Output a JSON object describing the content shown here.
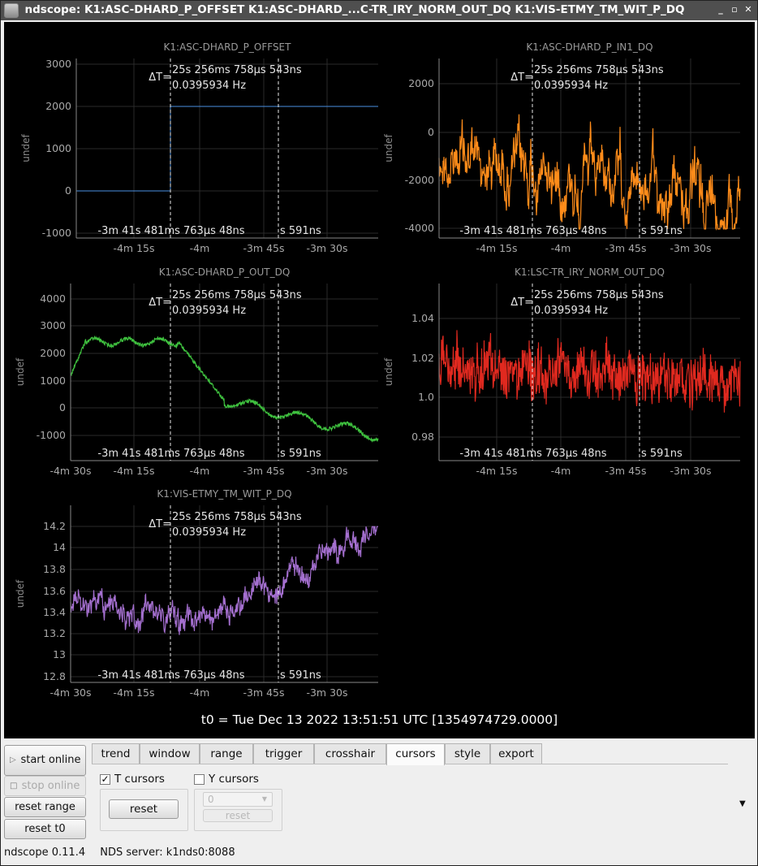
{
  "window": {
    "title": "ndscope: K1:ASC-DHARD_P_OFFSET K1:ASC-DHARD_...C-TR_IRY_NORM_OUT_DQ K1:VIS-ETMY_TM_WIT_P_DQ",
    "controls": {
      "minimize": "_",
      "maximize": "▫",
      "close": "✕"
    }
  },
  "cursor_readout": {
    "delta_t_label": "ΔT=",
    "delta_t_value": "25s 256ms 758µs 543ns",
    "frequency": "0.0395934 Hz",
    "cursor1_time": "-3m 41s 481ms 763µs 48ns",
    "cursor2_time": "s 591ns"
  },
  "colors": {
    "background": "#000000",
    "axis": "#888888",
    "grid": "#2a2a2a",
    "offset_trace": "#4a90e2",
    "in1_trace": "#ff8c1a",
    "out_trace": "#3fc23f",
    "norm_trace": "#e0291f",
    "wit_trace": "#a46fcf"
  },
  "plots": [
    {
      "channel": "K1:ASC-DHARD_P_OFFSET",
      "ylabel": "undef",
      "yticks": [
        "3000",
        "2000",
        "1000",
        "0",
        "-1000"
      ],
      "xticks": [
        "-4m 15s",
        "-4m",
        "-3m 45s",
        "-3m 30s"
      ],
      "color": "#4a90e2"
    },
    {
      "channel": "K1:ASC-DHARD_P_IN1_DQ",
      "ylabel": "undef",
      "yticks": [
        "2000",
        "0",
        "-2000",
        "-4000"
      ],
      "xticks": [
        "-4m 15s",
        "-4m",
        "-3m 45s",
        "-3m 30s"
      ],
      "color": "#ff8c1a"
    },
    {
      "channel": "K1:ASC-DHARD_P_OUT_DQ",
      "ylabel": "undef",
      "yticks": [
        "4000",
        "3000",
        "2000",
        "1000",
        "0",
        "-1000"
      ],
      "xticks": [
        "-4m 30s",
        "-4m 15s",
        "-4m",
        "-3m 45s",
        "-3m 30s"
      ],
      "color": "#3fc23f"
    },
    {
      "channel": "K1:LSC-TR_IRY_NORM_OUT_DQ",
      "ylabel": "undef",
      "yticks": [
        "1.04",
        "1.02",
        "1.0",
        "0.98"
      ],
      "xticks": [
        "-4m 15s",
        "-4m",
        "-3m 45s",
        "-3m 30s"
      ],
      "color": "#e0291f"
    },
    {
      "channel": "K1:VIS-ETMY_TM_WIT_P_DQ",
      "ylabel": "undef",
      "yticks": [
        "14.2",
        "14",
        "13.8",
        "13.6",
        "13.4",
        "13.2",
        "13",
        "12.8"
      ],
      "xticks": [
        "-4m 30s",
        "-4m 15s",
        "-4m",
        "-3m 45s",
        "-3m 30s"
      ],
      "color": "#a46fcf"
    }
  ],
  "t0": "t0 = Tue Dec 13 2022 13:51:51 UTC [1354974729.0000]",
  "left_buttons": {
    "start_online": "start online",
    "stop_online": "stop online",
    "reset_range": "reset range",
    "reset_t0": "reset t0"
  },
  "tabs": [
    "trend",
    "window",
    "range",
    "trigger",
    "crosshair",
    "cursors",
    "style",
    "export"
  ],
  "active_tab": "cursors",
  "cursors_panel": {
    "t_cursors_label": "T cursors",
    "t_cursors_checked": "✓",
    "y_cursors_label": "Y cursors",
    "t_reset": "reset",
    "y_trace_value": "0",
    "y_reset": "reset"
  },
  "status": {
    "version": "ndscope 0.11.4",
    "server": "NDS server: k1nds0:8088"
  }
}
